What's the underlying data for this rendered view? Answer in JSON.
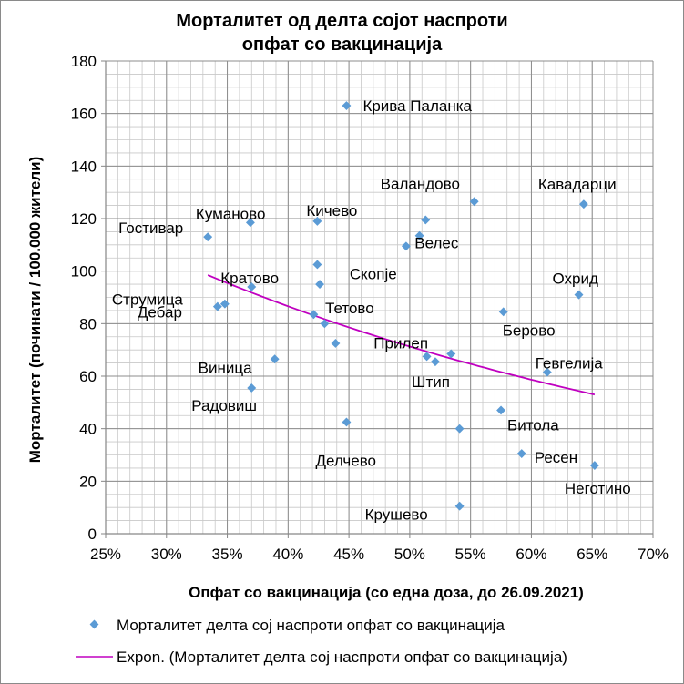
{
  "chart_data": {
    "type": "scatter",
    "title_lines": [
      "Морталитет од делта сојот наспроти",
      "опфат со вакцинација"
    ],
    "xlabel": "Опфат со вакцинација (со една доза, до 26.09.2021)",
    "ylabel": "Морталитет  (починати / 100.000 жители)",
    "xlim": [
      0.25,
      0.7
    ],
    "ylim": [
      0,
      180
    ],
    "x_ticks": [
      0.25,
      0.3,
      0.35,
      0.4,
      0.45,
      0.5,
      0.55,
      0.6,
      0.65,
      0.7
    ],
    "x_tick_labels": [
      "25%",
      "30%",
      "35%",
      "40%",
      "45%",
      "50%",
      "55%",
      "60%",
      "65%",
      "70%"
    ],
    "y_ticks": [
      0,
      20,
      40,
      60,
      80,
      100,
      120,
      140,
      160,
      180
    ],
    "y_tick_labels": [
      "0",
      "20",
      "40",
      "60",
      "80",
      "100",
      "120",
      "140",
      "160",
      "180"
    ],
    "grid": true,
    "marker_color": "#5b9bd5",
    "trend_color": "#c000c0",
    "points": [
      {
        "label": "Крива Паланка",
        "x": 0.448,
        "y": 163
      },
      {
        "label": "Кавадарци",
        "x": 0.643,
        "y": 125.5
      },
      {
        "label": "Валандово",
        "x": 0.553,
        "y": 126.5
      },
      {
        "label": "Куманово",
        "x": 0.369,
        "y": 118.5
      },
      {
        "label": "Кичево",
        "x": 0.424,
        "y": 119
      },
      {
        "label": "Гостивар",
        "x": 0.334,
        "y": 113
      },
      {
        "label": "Велес",
        "x": 0.513,
        "y": 119.5
      },
      {
        "label": "Скопје",
        "x": 0.497,
        "y": 109.5
      },
      {
        "label": "",
        "x": 0.508,
        "y": 113.5
      },
      {
        "label": "",
        "x": 0.424,
        "y": 102.5
      },
      {
        "label": "Тетово",
        "x": 0.426,
        "y": 95
      },
      {
        "label": "Кратово",
        "x": 0.37,
        "y": 94
      },
      {
        "label": "Струмица",
        "x": 0.348,
        "y": 87.5
      },
      {
        "label": "Дебар",
        "x": 0.342,
        "y": 86.5
      },
      {
        "label": "Охрид",
        "x": 0.639,
        "y": 91
      },
      {
        "label": "Берово",
        "x": 0.577,
        "y": 84.5
      },
      {
        "label": "",
        "x": 0.421,
        "y": 83.5
      },
      {
        "label": "",
        "x": 0.43,
        "y": 80
      },
      {
        "label": "",
        "x": 0.439,
        "y": 72.5
      },
      {
        "label": "Прилеп",
        "x": 0.534,
        "y": 68.5
      },
      {
        "label": "",
        "x": 0.514,
        "y": 67.5
      },
      {
        "label": "Штип",
        "x": 0.521,
        "y": 65.5
      },
      {
        "label": "Виница",
        "x": 0.389,
        "y": 66.5
      },
      {
        "label": "Гевгелија",
        "x": 0.613,
        "y": 61.5
      },
      {
        "label": "Радовиш",
        "x": 0.37,
        "y": 55.5
      },
      {
        "label": "Битола",
        "x": 0.575,
        "y": 47
      },
      {
        "label": "Делчево",
        "x": 0.448,
        "y": 42.5
      },
      {
        "label": "",
        "x": 0.541,
        "y": 40
      },
      {
        "label": "Ресен",
        "x": 0.592,
        "y": 30.5
      },
      {
        "label": "Неготино",
        "x": 0.652,
        "y": 26
      },
      {
        "label": "Крушево",
        "x": 0.541,
        "y": 10.5
      }
    ],
    "trendline": {
      "type": "exponential",
      "x_start": 0.334,
      "y_start": 98.5,
      "x_end": 0.652,
      "y_end": 53
    },
    "legend": [
      {
        "kind": "marker",
        "label": "Морталитет делта сој наспроти опфат со вакцинација"
      },
      {
        "kind": "line",
        "label": "Expon. (Морталитет делта сој наспроти опфат со вакцинација)"
      }
    ]
  }
}
